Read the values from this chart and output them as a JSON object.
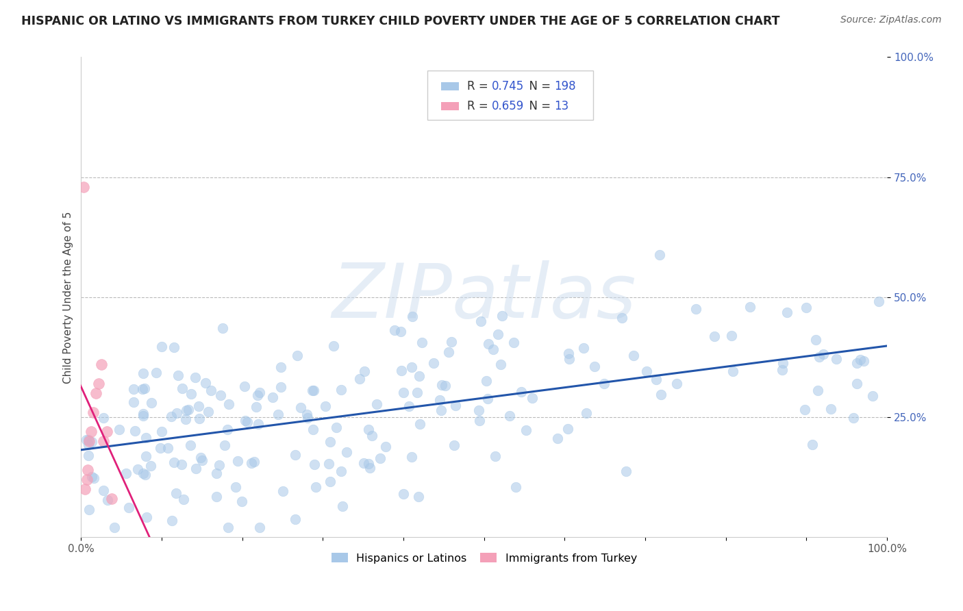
{
  "title": "HISPANIC OR LATINO VS IMMIGRANTS FROM TURKEY CHILD POVERTY UNDER THE AGE OF 5 CORRELATION CHART",
  "source": "Source: ZipAtlas.com",
  "ylabel": "Child Poverty Under the Age of 5",
  "watermark": "ZIPatlas",
  "blue_R": 0.745,
  "blue_N": 198,
  "pink_R": 0.659,
  "pink_N": 13,
  "blue_color": "#a8c8e8",
  "pink_color": "#f4a0b8",
  "blue_line_color": "#2255aa",
  "pink_line_color": "#e0207a",
  "legend_blue_label": "Hispanics or Latinos",
  "legend_pink_label": "Immigrants from Turkey",
  "title_color": "#222222",
  "source_color": "#666666",
  "stat_color": "#3355cc",
  "background_color": "#ffffff",
  "grid_color": "#bbbbbb",
  "seed": 7
}
